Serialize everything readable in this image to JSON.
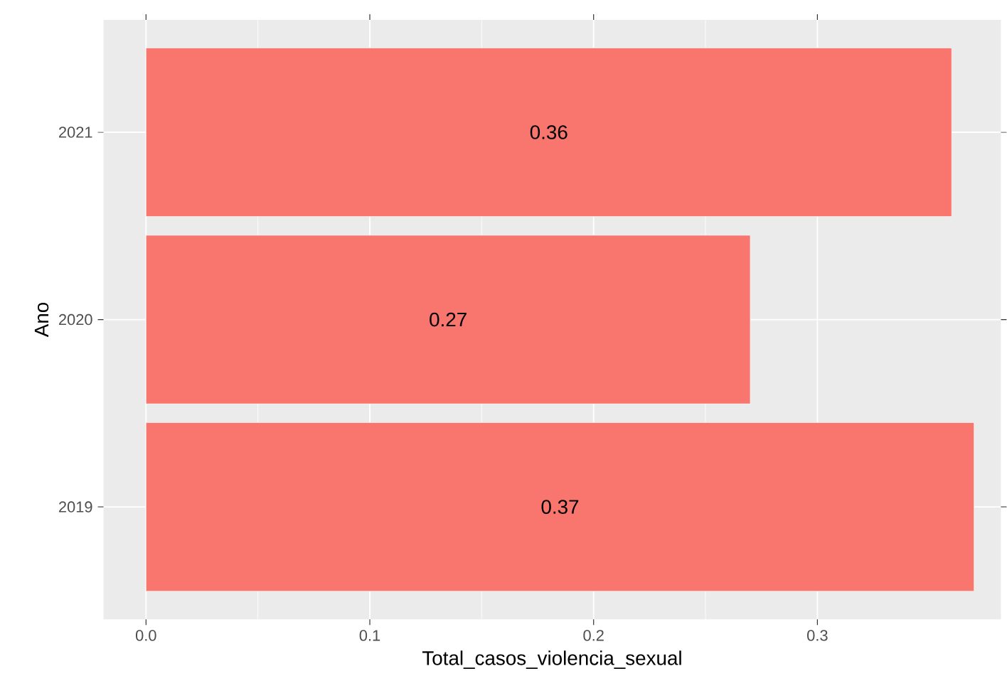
{
  "chart_data": {
    "type": "bar",
    "orientation": "horizontal",
    "xlabel": "Total_casos_violencia_sexual",
    "ylabel": "Ano",
    "categories": [
      "2021",
      "2020",
      "2019"
    ],
    "values": [
      0.36,
      0.27,
      0.37
    ],
    "color": "#f8766d",
    "data_labels": true,
    "grid": true,
    "xlim": [
      -0.019,
      0.382
    ],
    "xticks": [
      {
        "value": 0,
        "label": "0.0"
      },
      0.1,
      0.2,
      0.3
    ]
  }
}
